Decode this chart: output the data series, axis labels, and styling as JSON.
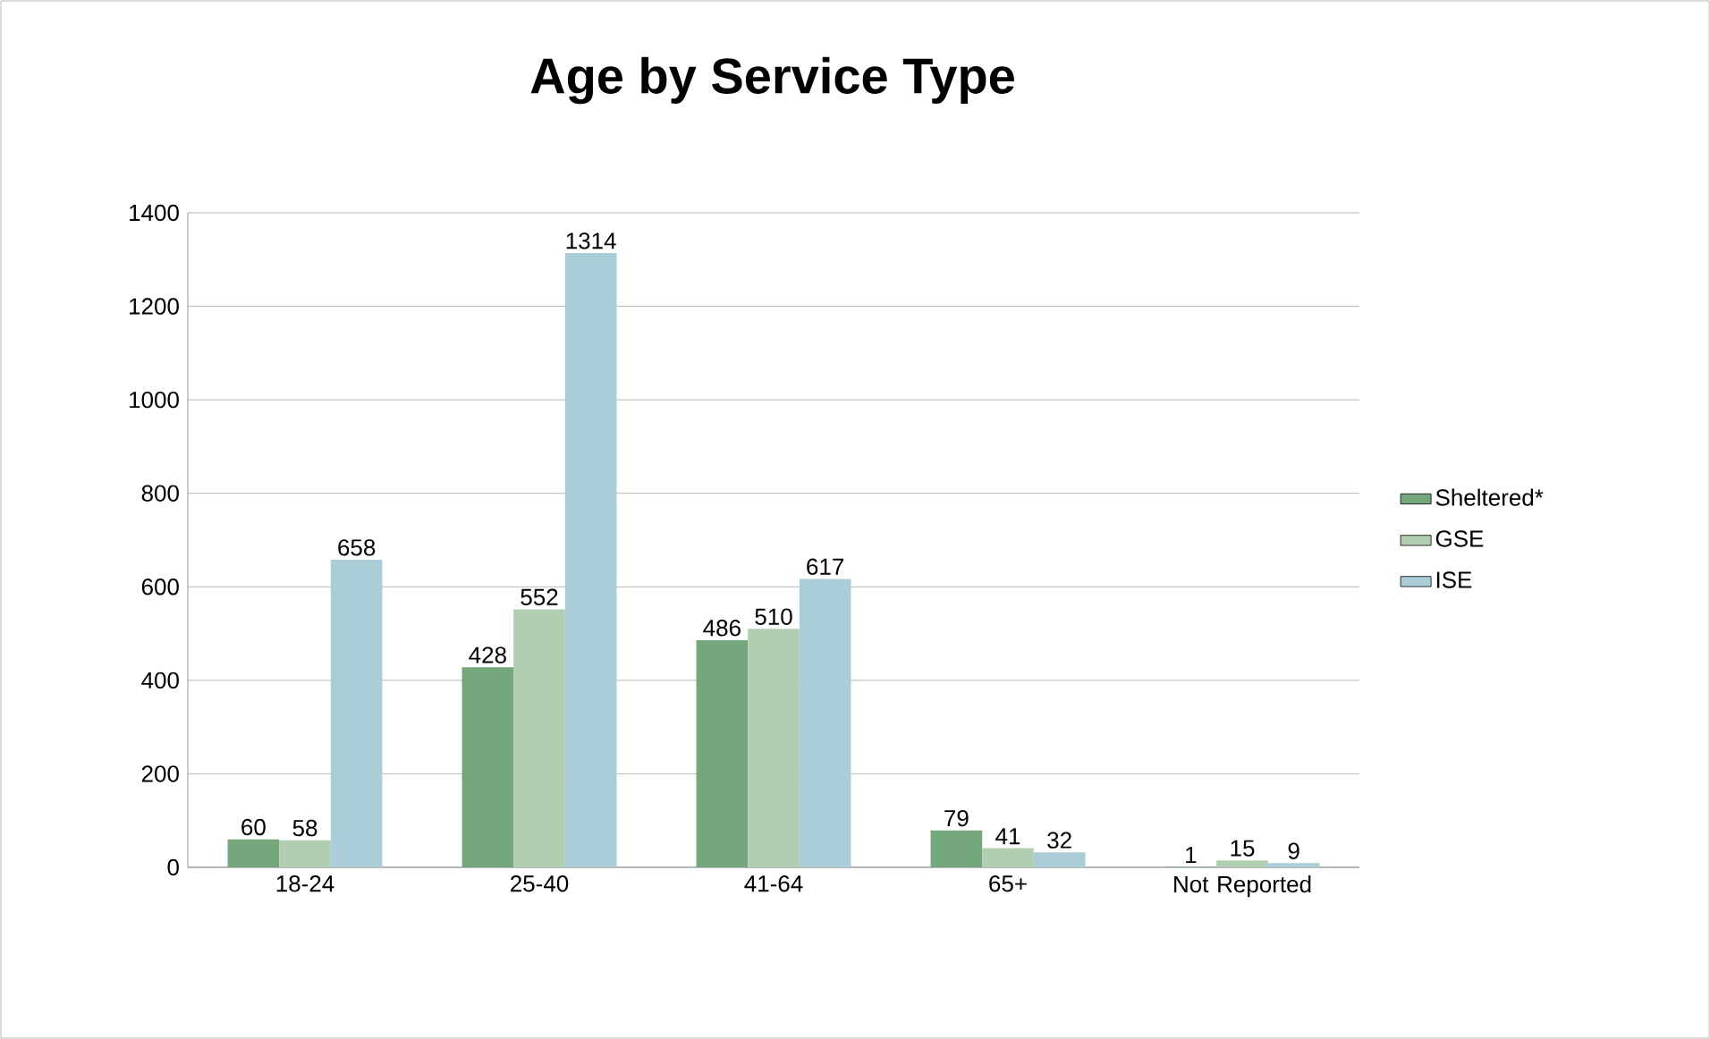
{
  "chart_data": {
    "type": "bar",
    "title": "Age by Service Type",
    "categories": [
      "18-24",
      "25-40",
      "41-64",
      "65+",
      "Not Reported"
    ],
    "series": [
      {
        "name": "Sheltered*",
        "color": "#74a77b",
        "values": [
          60,
          428,
          486,
          79,
          1
        ]
      },
      {
        "name": "GSE",
        "color": "#b1cfb0",
        "values": [
          58,
          552,
          510,
          41,
          15
        ]
      },
      {
        "name": "ISE",
        "color": "#aacdd7",
        "values": [
          658,
          1314,
          617,
          32,
          9
        ]
      }
    ],
    "ylim": [
      0,
      1400
    ],
    "yticks": [
      0,
      200,
      400,
      600,
      800,
      1000,
      1200,
      1400
    ],
    "grid": "y",
    "legend": "right",
    "data_labels": true
  }
}
